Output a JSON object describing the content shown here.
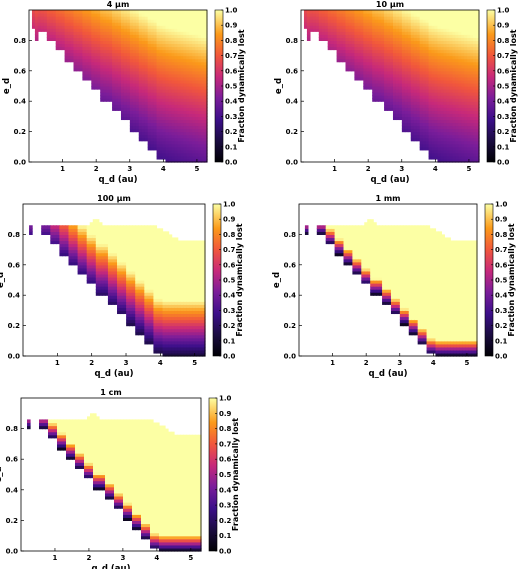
{
  "chart_data": [
    {
      "type": "heatmap",
      "title": "4 μm",
      "regime": "small",
      "xlabel": "q_d (au)",
      "ylabel": "e_d",
      "colorbar_label": "Fraction dynamically lost",
      "xlim": [
        0,
        5.3
      ],
      "ylim": [
        0,
        1.0
      ],
      "xticks": [
        "1",
        "2",
        "3",
        "4",
        "5"
      ],
      "yticks": [
        "0.0",
        "0.2",
        "0.4",
        "0.6",
        "0.8"
      ],
      "cbar_ticks": [
        "0.0",
        "0.1",
        "0.2",
        "0.3",
        "0.4",
        "0.5",
        "0.6",
        "0.7",
        "0.8",
        "0.9",
        "1.0"
      ],
      "colormap": "inferno-like"
    },
    {
      "type": "heatmap",
      "title": "10 μm",
      "regime": "small",
      "xlabel": "q_d (au)",
      "ylabel": "e_d",
      "colorbar_label": "Fraction dynamically lost",
      "xlim": [
        0,
        5.3
      ],
      "ylim": [
        0,
        1.0
      ],
      "xticks": [
        "1",
        "2",
        "3",
        "4",
        "5"
      ],
      "yticks": [
        "0.0",
        "0.2",
        "0.4",
        "0.6",
        "0.8"
      ],
      "cbar_ticks": [
        "0.0",
        "0.1",
        "0.2",
        "0.3",
        "0.4",
        "0.5",
        "0.6",
        "0.7",
        "0.8",
        "0.9",
        "1.0"
      ],
      "colormap": "inferno-like"
    },
    {
      "type": "heatmap",
      "title": "100 μm",
      "regime": "medium",
      "xlabel": "q_d (au)",
      "ylabel": "e_d",
      "colorbar_label": "Fraction dynamically lost",
      "xlim": [
        0,
        5.3
      ],
      "ylim": [
        0,
        1.0
      ],
      "xticks": [
        "1",
        "2",
        "3",
        "4",
        "5"
      ],
      "yticks": [
        "0.0",
        "0.2",
        "0.4",
        "0.6",
        "0.8"
      ],
      "cbar_ticks": [
        "0.0",
        "0.1",
        "0.2",
        "0.3",
        "0.4",
        "0.5",
        "0.6",
        "0.7",
        "0.8",
        "0.9",
        "1.0"
      ],
      "colormap": "inferno-like"
    },
    {
      "type": "heatmap",
      "title": "1 mm",
      "regime": "large",
      "xlabel": "q_d (au)",
      "ylabel": "e_d",
      "colorbar_label": "Fraction dynamically lost",
      "xlim": [
        0,
        5.3
      ],
      "ylim": [
        0,
        1.0
      ],
      "xticks": [
        "1",
        "2",
        "3",
        "4",
        "5"
      ],
      "yticks": [
        "0.0",
        "0.2",
        "0.4",
        "0.6",
        "0.8"
      ],
      "cbar_ticks": [
        "0.0",
        "0.1",
        "0.2",
        "0.3",
        "0.4",
        "0.5",
        "0.6",
        "0.7",
        "0.8",
        "0.9",
        "1.0"
      ],
      "colormap": "inferno-like"
    },
    {
      "type": "heatmap",
      "title": "1 cm",
      "regime": "large",
      "xlabel": "q_d (au)",
      "ylabel": "e_d",
      "colorbar_label": "Fraction dynamically lost",
      "xlim": [
        0,
        5.3
      ],
      "ylim": [
        0,
        1.0
      ],
      "xticks": [
        "1",
        "2",
        "3",
        "4",
        "5"
      ],
      "yticks": [
        "0.0",
        "0.2",
        "0.4",
        "0.6",
        "0.8"
      ],
      "cbar_ticks": [
        "0.0",
        "0.1",
        "0.2",
        "0.3",
        "0.4",
        "0.5",
        "0.6",
        "0.7",
        "0.8",
        "0.9",
        "1.0"
      ],
      "colormap": "inferno-like"
    }
  ]
}
